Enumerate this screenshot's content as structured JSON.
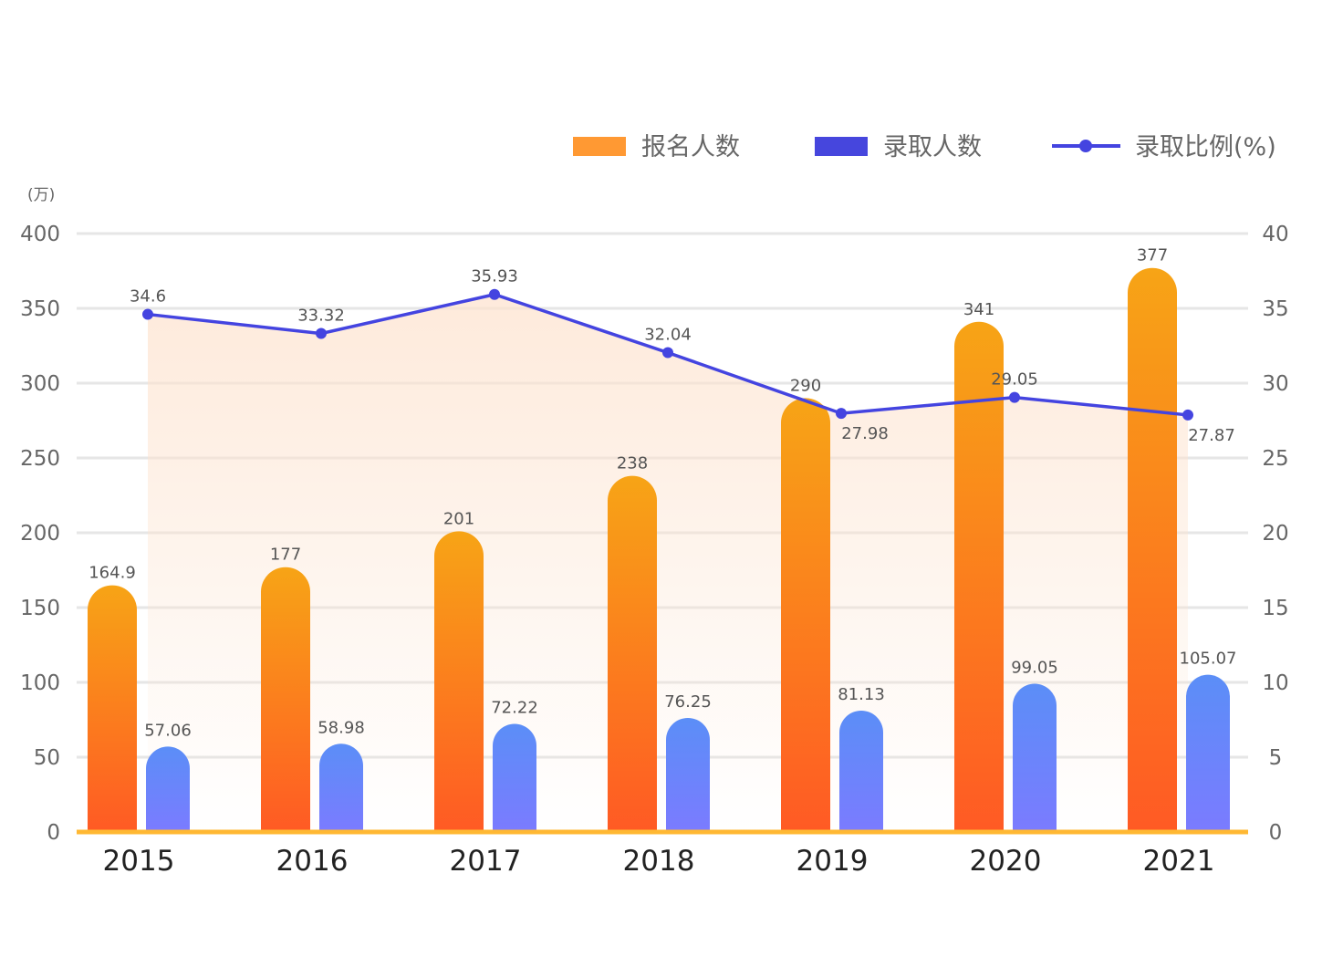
{
  "chart_data": {
    "type": "bar",
    "categories": [
      "2015",
      "2016",
      "2017",
      "2018",
      "2019",
      "2020",
      "2021"
    ],
    "series": [
      {
        "name": "报名人数",
        "type": "bar",
        "axis": "left",
        "values": [
          164.9,
          177,
          201,
          238,
          290,
          341,
          377
        ],
        "labels": [
          "164.9",
          "177",
          "201",
          "238",
          "290",
          "341",
          "377"
        ],
        "color_top": "#F7A416",
        "color_bottom": "#FF5A24",
        "legend_color": "#FF9933"
      },
      {
        "name": "录取人数",
        "type": "bar",
        "axis": "left",
        "values": [
          57.06,
          58.98,
          72.22,
          76.25,
          81.13,
          99.05,
          105.07
        ],
        "labels": [
          "57.06",
          "58.98",
          "72.22",
          "76.25",
          "81.13",
          "99.05",
          "105.07"
        ],
        "color_top": "#5B8EF7",
        "color_bottom": "#7B7BFF",
        "legend_color": "#4646DD"
      },
      {
        "name": "录取比例(%)",
        "type": "line",
        "axis": "right",
        "values": [
          34.6,
          33.32,
          35.93,
          32.04,
          27.98,
          29.05,
          27.87
        ],
        "labels": [
          "34.6",
          "33.32",
          "35.93",
          "32.04",
          "27.98",
          "29.05",
          "27.87"
        ],
        "color": "#4444E0",
        "area_color": "#FDE3CF"
      }
    ],
    "left_axis": {
      "unit_label": "(万)",
      "ylim": [
        0,
        400
      ],
      "ticks": [
        "0",
        "50",
        "100",
        "150",
        "200",
        "250",
        "300",
        "350",
        "400"
      ]
    },
    "right_axis": {
      "ylim": [
        0,
        40
      ],
      "ticks": [
        "0",
        "5",
        "10",
        "15",
        "20",
        "25",
        "30",
        "35",
        "40"
      ]
    },
    "grid": true,
    "legend_position": "top-right",
    "baseline_color": "#FFB833"
  }
}
